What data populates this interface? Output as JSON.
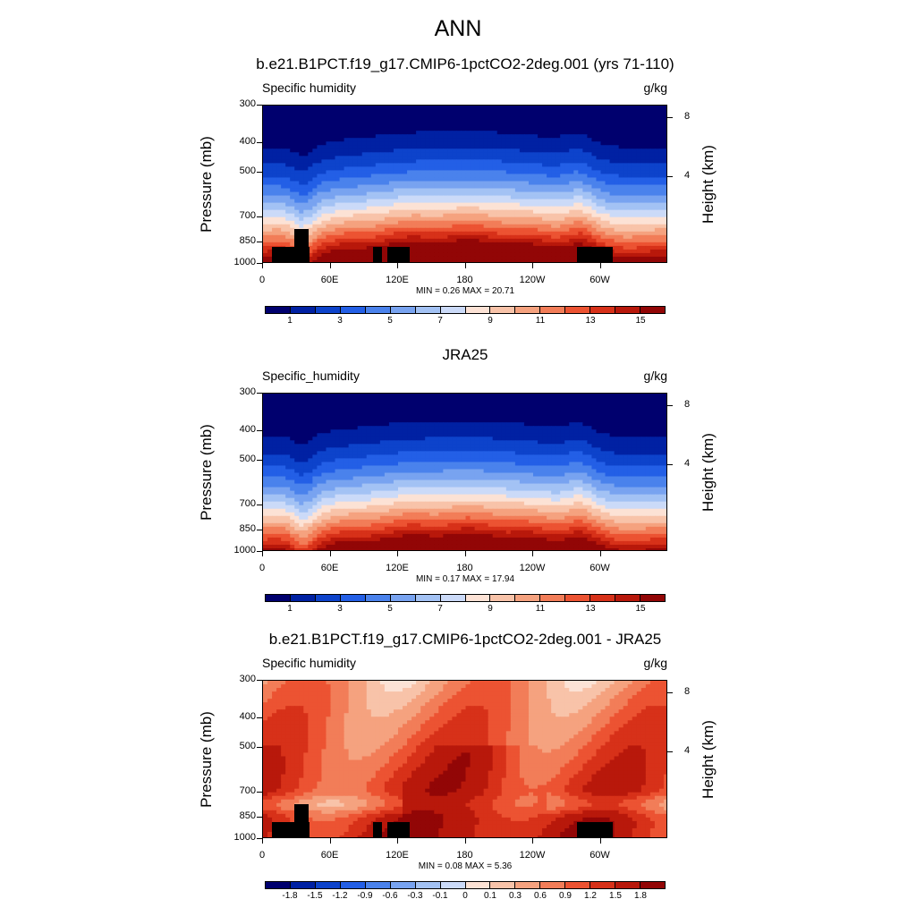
{
  "title": "ANN",
  "colors": {
    "abs_scale": [
      "#00006e",
      "#0021a3",
      "#0d43cb",
      "#235fe6",
      "#4a82ec",
      "#78a3f0",
      "#a3c2f4",
      "#cbdaf8",
      "#fce2d5",
      "#f8c3a9",
      "#f5a27f",
      "#f27d58",
      "#ec5332",
      "#d73119",
      "#b8180b",
      "#920606"
    ],
    "diff_scale": [
      "#00006e",
      "#0021a3",
      "#0d43cb",
      "#235fe6",
      "#4a82ec",
      "#78a3f0",
      "#a3c2f4",
      "#cbdaf8",
      "#fce2d5",
      "#f8c3a9",
      "#f5a27f",
      "#f27d58",
      "#ec5332",
      "#d73119",
      "#b8180b",
      "#920606"
    ]
  },
  "axes": {
    "ylabel_left": "Pressure (mb)",
    "ylabel_right": "Height (km)",
    "pressure_ticks": [
      "300",
      "400",
      "500",
      "700",
      "850",
      "1000"
    ],
    "height_ticks": [
      "8",
      "4"
    ],
    "lon_ticks": [
      "0",
      "60E",
      "120E",
      "180",
      "120W",
      "60W"
    ]
  },
  "panels": [
    {
      "title": "b.e21.B1PCT.f19_g17.CMIP6-1pctCO2-2deg.001 (yrs 71-110)",
      "variable": "Specific humidity",
      "units": "g/kg",
      "minmax": "MIN =   0.26  MAX =  20.71",
      "colorbar_labels": [
        "1",
        "3",
        "5",
        "7",
        "9",
        "11",
        "13",
        "15"
      ],
      "kind": "abs",
      "terrain": true
    },
    {
      "title": "JRA25",
      "variable": "Specific_humidity",
      "units": "g/kg",
      "minmax": "MIN =   0.17  MAX =  17.94",
      "colorbar_labels": [
        "1",
        "3",
        "5",
        "7",
        "9",
        "11",
        "13",
        "15"
      ],
      "kind": "abs",
      "terrain": false
    },
    {
      "title": "b.e21.B1PCT.f19_g17.CMIP6-1pctCO2-2deg.001 - JRA25",
      "variable": "Specific humidity",
      "units": "g/kg",
      "minmax": "MIN =   0.08  MAX =   5.36",
      "colorbar_labels": [
        "-1.8",
        "-1.5",
        "-1.2",
        "-0.9",
        "-0.6",
        "-0.3",
        "-0.1",
        "0",
        "0.1",
        "0.3",
        "0.6",
        "0.9",
        "1.2",
        "1.5",
        "1.8"
      ],
      "kind": "diff",
      "terrain": true
    }
  ],
  "chart_data": [
    {
      "type": "heatmap",
      "title": "b.e21.B1PCT.f19_g17.CMIP6-1pctCO2-2deg.001 (yrs 71-110)",
      "variable": "Specific humidity",
      "units": "g/kg",
      "x_ticks": [
        "0",
        "60E",
        "120E",
        "180",
        "120W",
        "60W"
      ],
      "y_ticks_pressure_mb": [
        300,
        400,
        500,
        700,
        850,
        1000
      ],
      "y_ticks_height_km": [
        8,
        4
      ],
      "min": 0.26,
      "max": 20.71,
      "levels": [
        1,
        3,
        5,
        7,
        9,
        11,
        13,
        15
      ]
    },
    {
      "type": "heatmap",
      "title": "JRA25",
      "variable": "Specific_humidity",
      "units": "g/kg",
      "x_ticks": [
        "0",
        "60E",
        "120E",
        "180",
        "120W",
        "60W"
      ],
      "y_ticks_pressure_mb": [
        300,
        400,
        500,
        700,
        850,
        1000
      ],
      "y_ticks_height_km": [
        8,
        4
      ],
      "min": 0.17,
      "max": 17.94,
      "levels": [
        1,
        3,
        5,
        7,
        9,
        11,
        13,
        15
      ]
    },
    {
      "type": "heatmap",
      "title": "b.e21.B1PCT.f19_g17.CMIP6-1pctCO2-2deg.001 - JRA25",
      "variable": "Specific humidity",
      "units": "g/kg",
      "x_ticks": [
        "0",
        "60E",
        "120E",
        "180",
        "120W",
        "60W"
      ],
      "y_ticks_pressure_mb": [
        300,
        400,
        500,
        700,
        850,
        1000
      ],
      "y_ticks_height_km": [
        8,
        4
      ],
      "min": 0.08,
      "max": 5.36,
      "levels": [
        -1.8,
        -1.5,
        -1.2,
        -0.9,
        -0.6,
        -0.3,
        -0.1,
        0,
        0.1,
        0.3,
        0.6,
        0.9,
        1.2,
        1.5,
        1.8
      ]
    }
  ]
}
